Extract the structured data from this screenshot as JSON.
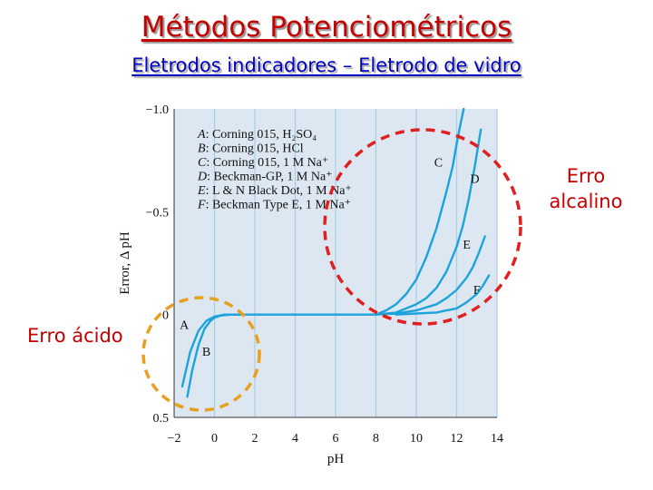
{
  "slide": {
    "title": "Métodos Potenciométricos",
    "subtitle": "Eletrodos indicadores – Eletrodo de vidro",
    "alkaline_error_label": [
      "Erro",
      "alcalino"
    ],
    "acid_error_label": "Erro ácido"
  },
  "colors": {
    "title": "#c40000",
    "subtitle": "#0000c0",
    "plot_background": "#dce7f1",
    "gridline": "#a9cfe6",
    "curve": "#1ca3dc",
    "alkaline_circle": "#e02020",
    "acid_circle": "#e8a020"
  },
  "chart_data": {
    "type": "line",
    "xlabel": "pH",
    "ylabel": "Error, Δ pH",
    "xlim": [
      -2,
      14
    ],
    "ylim": [
      0.5,
      -1.0
    ],
    "x_ticks": [
      -2,
      0,
      2,
      4,
      6,
      8,
      10,
      12,
      14
    ],
    "x_tick_labels": [
      "−2",
      "0",
      "2",
      "4",
      "6",
      "8",
      "10",
      "12",
      "14"
    ],
    "y_ticks": [
      -1.0,
      -0.5,
      0,
      0.5
    ],
    "y_tick_labels": [
      "−1.0",
      "−0.5",
      "0",
      "0.5"
    ],
    "grid": "vertical",
    "legend": {
      "placement": "top-left",
      "entries": [
        {
          "key": "A",
          "text": "Corning 015, H₂SO₄"
        },
        {
          "key": "B",
          "text": "Corning 015, HCl"
        },
        {
          "key": "C",
          "text": "Corning 015, 1 M Na⁺"
        },
        {
          "key": "D",
          "text": "Beckman-GP, 1 M Na⁺"
        },
        {
          "key": "E",
          "text": "L & N Black Dot, 1 M Na⁺"
        },
        {
          "key": "F",
          "text": "Beckman Type E, 1 M Na⁺"
        }
      ]
    },
    "series": [
      {
        "name": "A",
        "x": [
          -1.6,
          -1.2,
          -0.8,
          -0.4,
          0.0,
          0.5,
          1.0,
          2.0,
          4.0,
          6.0,
          8.0
        ],
        "y": [
          0.35,
          0.18,
          0.08,
          0.03,
          0.01,
          0.0,
          0.0,
          0.0,
          0.0,
          0.0,
          0.0
        ]
      },
      {
        "name": "B",
        "x": [
          -1.35,
          -1.1,
          -0.8,
          -0.5,
          -0.2,
          0.0,
          0.3,
          0.8,
          1.5
        ],
        "y": [
          0.4,
          0.27,
          0.15,
          0.07,
          0.03,
          0.015,
          0.005,
          0.0,
          0.0
        ]
      },
      {
        "name": "C",
        "x": [
          8.0,
          8.5,
          9.0,
          9.5,
          10.0,
          10.5,
          11.0,
          11.5,
          11.8,
          12.0,
          12.2,
          12.35
        ],
        "y": [
          0.0,
          -0.02,
          -0.05,
          -0.1,
          -0.17,
          -0.28,
          -0.42,
          -0.6,
          -0.72,
          -0.83,
          -0.93,
          -1.0
        ]
      },
      {
        "name": "D",
        "x": [
          8.0,
          9.0,
          10.0,
          10.5,
          11.0,
          11.5,
          12.0,
          12.3,
          12.6,
          12.9,
          13.2
        ],
        "y": [
          0.0,
          -0.01,
          -0.05,
          -0.08,
          -0.13,
          -0.21,
          -0.33,
          -0.43,
          -0.56,
          -0.72,
          -0.9
        ]
      },
      {
        "name": "E",
        "x": [
          8.0,
          9.0,
          10.0,
          11.0,
          11.5,
          12.0,
          12.5,
          12.8,
          13.1,
          13.4
        ],
        "y": [
          0.0,
          -0.005,
          -0.02,
          -0.05,
          -0.08,
          -0.12,
          -0.18,
          -0.23,
          -0.3,
          -0.38
        ]
      },
      {
        "name": "F",
        "x": [
          9.0,
          10.0,
          11.0,
          11.5,
          12.0,
          12.5,
          13.0,
          13.3,
          13.6
        ],
        "y": [
          0.0,
          -0.005,
          -0.01,
          -0.02,
          -0.03,
          -0.06,
          -0.1,
          -0.14,
          -0.19
        ]
      }
    ],
    "curve_labels": [
      {
        "key": "A",
        "x": -1.5,
        "y": 0.07
      },
      {
        "key": "B",
        "x": -0.4,
        "y": 0.2
      },
      {
        "key": "C",
        "x": 11.1,
        "y": -0.72
      },
      {
        "key": "D",
        "x": 12.9,
        "y": -0.64
      },
      {
        "key": "E",
        "x": 12.5,
        "y": -0.32
      },
      {
        "key": "F",
        "x": 13.0,
        "y": -0.1
      }
    ]
  }
}
